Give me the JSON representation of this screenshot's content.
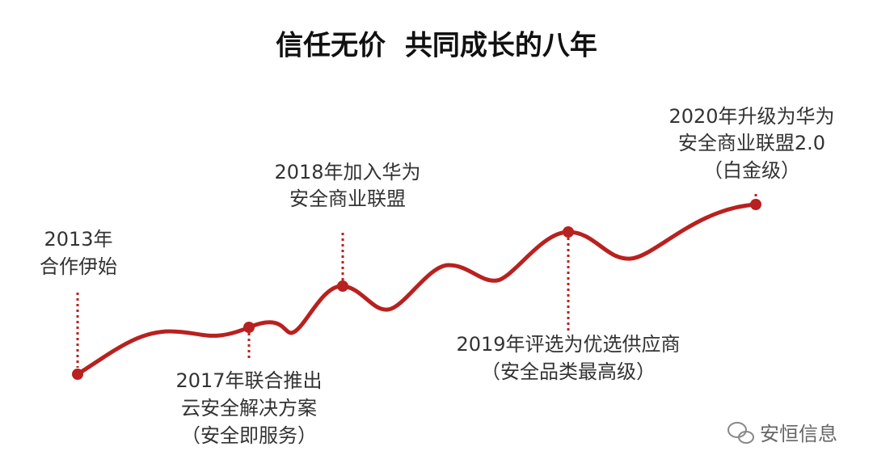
{
  "title": "信任无价  共同成长的八年",
  "milestones": [
    {
      "lines": [
        "2013年",
        "合作伊始"
      ]
    },
    {
      "lines": [
        "2017年联合推出",
        "云安全解决方案",
        "（安全即服务）"
      ]
    },
    {
      "lines": [
        "2018年加入华为",
        "安全商业联盟"
      ]
    },
    {
      "lines": [
        "2019年评选为优选供应商",
        "（安全品类最高级）"
      ]
    },
    {
      "lines": [
        "2020年升级为华为",
        "安全商业联盟2.0",
        "（白金级）"
      ]
    }
  ],
  "watermark": "安恒信息"
}
